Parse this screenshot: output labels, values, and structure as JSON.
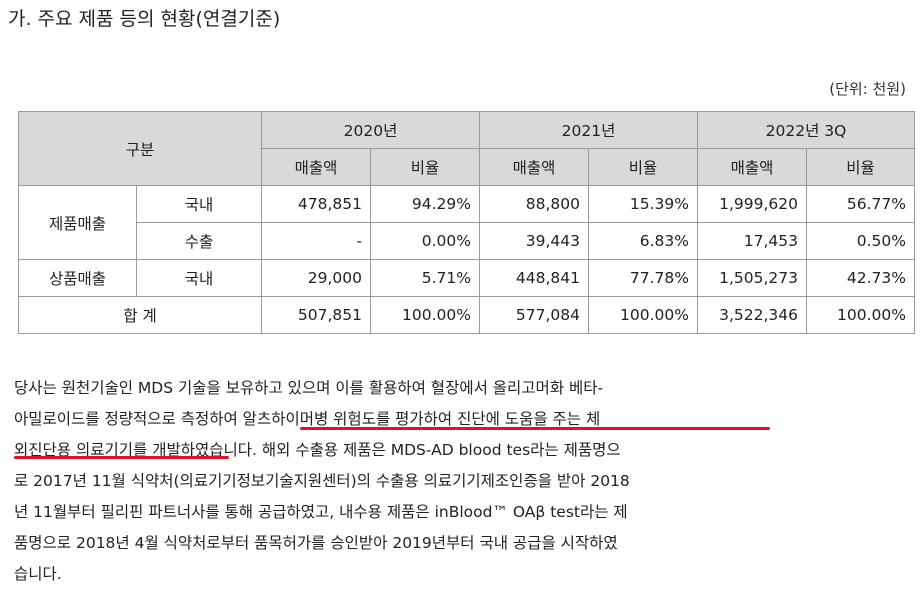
{
  "title": "가. 주요 제품 등의 현황(연결기준)",
  "unit": "(단위: 천원)",
  "table": {
    "header_category": "구분",
    "years": [
      "2020년",
      "2021년",
      "2022년 3Q"
    ],
    "sub_headers": {
      "sales": "매출액",
      "ratio": "비율"
    },
    "rows": [
      {
        "group": "제품매출",
        "sub": "국내",
        "v": [
          "478,851",
          "94.29%",
          "88,800",
          "15.39%",
          "1,999,620",
          "56.77%"
        ]
      },
      {
        "group": "",
        "sub": "수출",
        "v": [
          "-",
          "0.00%",
          "39,443",
          "6.83%",
          "17,453",
          "0.50%"
        ]
      },
      {
        "group": "상품매출",
        "sub": "국내",
        "v": [
          "29,000",
          "5.71%",
          "448,841",
          "77.78%",
          "1,505,273",
          "42.73%"
        ]
      }
    ],
    "total": {
      "label": "합 계",
      "v": [
        "507,851",
        "100.00%",
        "577,084",
        "100.00%",
        "3,522,346",
        "100.00%"
      ]
    }
  },
  "paragraph": [
    "당사는 원천기술인 MDS 기술을 보유하고 있으며 이를 활용하여 혈장에서 올리고머화 베타-",
    "아밀로이드를 정량적으로 측정하여 알츠하이머병 위험도를 평가하여 진단에 도움을 주는 체",
    "외진단용 의료기기를 개발하였습니다. 해외 수출용 제품은 MDS-AD blood tes라는 제품명으",
    "로 2017년 11월 식약처(의료기기정보기술지원센터)의 수출용 의료기기제조인증을 받아 2018",
    "년 11월부터 필리핀 파트너사를 통해 공급하였고, 내수용 제품은 inBlood™ OAβ test라는 제",
    "품명으로 2018년 4월 식약처로부터 품목허가를 승인받아 2019년부터 국내 공급을 시작하였",
    "습니다."
  ]
}
